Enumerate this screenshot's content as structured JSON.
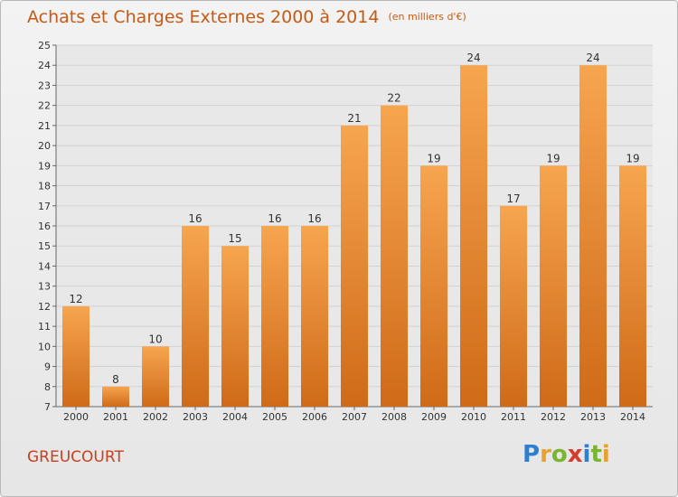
{
  "header": {
    "title": "Achats et Charges Externes 2000 à 2014",
    "unit": "(en milliers d'€)"
  },
  "footer": {
    "town": "GREUCOURT",
    "logo_letters": [
      {
        "ch": "P",
        "color": "#2f7fd0"
      },
      {
        "ch": "r",
        "color": "#e8a12a"
      },
      {
        "ch": "o",
        "color": "#7ab52e"
      },
      {
        "ch": "x",
        "color": "#d83a2b"
      },
      {
        "ch": "i",
        "color": "#2f7fd0"
      },
      {
        "ch": "t",
        "color": "#7ab52e"
      },
      {
        "ch": "i",
        "color": "#e8a12a"
      }
    ]
  },
  "colors": {
    "bar_top": "#f7a54f",
    "bar_bottom": "#cf6a18",
    "title": "#c55a14",
    "town": "#c8401e"
  },
  "chart_data": {
    "type": "bar",
    "title": "Achats et Charges Externes 2000 à 2014",
    "subtitle": "(en milliers d'€)",
    "xlabel": "",
    "ylabel": "",
    "ylim": [
      7,
      25
    ],
    "yticks": [
      7,
      8,
      9,
      10,
      11,
      12,
      13,
      14,
      15,
      16,
      17,
      18,
      19,
      20,
      21,
      22,
      23,
      24,
      25
    ],
    "grid": true,
    "categories": [
      "2000",
      "2001",
      "2002",
      "2003",
      "2004",
      "2005",
      "2006",
      "2007",
      "2008",
      "2009",
      "2010",
      "2011",
      "2012",
      "2013",
      "2014"
    ],
    "values": [
      12,
      8,
      10,
      16,
      15,
      16,
      16,
      21,
      22,
      19,
      24,
      17,
      19,
      24,
      19
    ]
  }
}
